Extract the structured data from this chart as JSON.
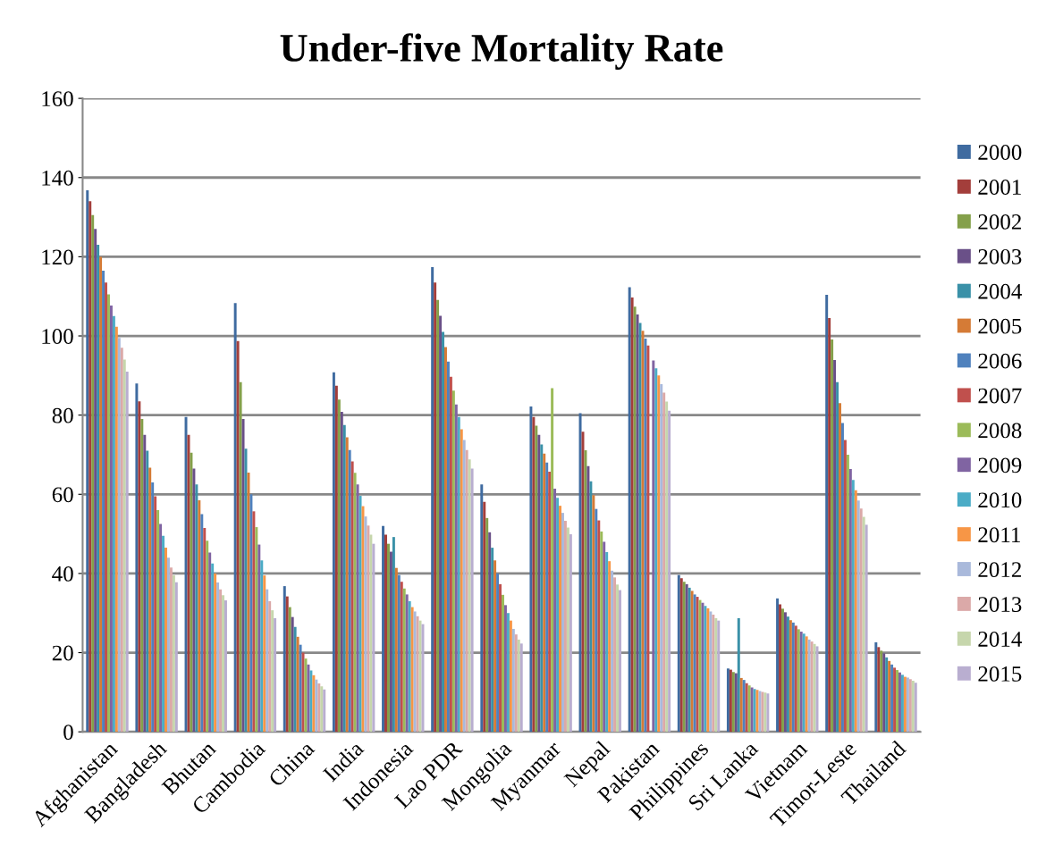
{
  "chart_data": {
    "type": "bar",
    "title": "Under-five Mortality Rate",
    "categories": [
      "Afghanistan",
      "Bangladesh",
      "Bhutan",
      "Cambodia",
      "China",
      "India",
      "Indonesia",
      "Lao PDR",
      "Mongolia",
      "Myanmar",
      "Nepal",
      "Pakistan",
      "Philippines",
      "Sri Lanka",
      "Vietnam",
      "Timor-Leste",
      "Thailand"
    ],
    "ylim": [
      0,
      160
    ],
    "yticks": [
      0,
      20,
      40,
      60,
      80,
      100,
      120,
      140,
      160
    ],
    "grid": "y",
    "legend": "right",
    "series": [
      {
        "name": "2000",
        "color": "#3f6ba0",
        "values": [
          136.8,
          88,
          79.5,
          108.3,
          36.8,
          90.8,
          52,
          117.4,
          62.5,
          82.2,
          80.5,
          112.3,
          39.6,
          16,
          33.7,
          110.4,
          22.6
        ]
      },
      {
        "name": "2001",
        "color": "#a33e3b",
        "values": [
          134,
          83.5,
          75,
          98.7,
          34.2,
          87.4,
          49.8,
          113.5,
          58.1,
          79.5,
          75.8,
          109.7,
          38.8,
          15.7,
          32.2,
          104.5,
          21.4
        ]
      },
      {
        "name": "2002",
        "color": "#84a04a",
        "values": [
          130.5,
          79,
          70.5,
          88.3,
          31.5,
          83.9,
          47.5,
          109.1,
          54,
          77.3,
          71.1,
          107.4,
          37.9,
          15.1,
          31.1,
          99.1,
          20.5
        ]
      },
      {
        "name": "2003",
        "color": "#6a5088",
        "values": [
          127,
          75,
          66.5,
          79,
          29,
          80.8,
          45.5,
          105.1,
          50.4,
          75,
          67.1,
          105.4,
          37.3,
          14.8,
          30.2,
          93.9,
          19.8
        ]
      },
      {
        "name": "2004",
        "color": "#3a91a8",
        "values": [
          123,
          71,
          62.5,
          71.5,
          26.5,
          77.5,
          49.2,
          101,
          46.5,
          72.6,
          63.3,
          103.3,
          36.4,
          28.7,
          29.1,
          88.3,
          18.8
        ]
      },
      {
        "name": "2005",
        "color": "#d57b36",
        "values": [
          120,
          66.7,
          58.5,
          65.5,
          24,
          74.4,
          41.4,
          97.2,
          43.3,
          70.3,
          59.8,
          101.3,
          35.6,
          13.6,
          28.2,
          83,
          17.9
        ]
      },
      {
        "name": "2006",
        "color": "#4f81bd",
        "values": [
          116.5,
          63,
          55,
          60,
          22,
          71.2,
          39.6,
          93.5,
          40,
          68,
          56.3,
          99.3,
          34.7,
          13.1,
          27.6,
          78,
          17
        ]
      },
      {
        "name": "2007",
        "color": "#c0504d",
        "values": [
          113.5,
          59.5,
          51.5,
          55.7,
          20,
          68.3,
          37.9,
          89.7,
          37.3,
          65.7,
          53.4,
          97.6,
          34.1,
          12.3,
          26.8,
          73.7,
          16.2
        ]
      },
      {
        "name": "2008",
        "color": "#9bbb59",
        "values": [
          110.5,
          56,
          48.3,
          51.7,
          18.5,
          65.4,
          36.2,
          86.2,
          34.6,
          86.8,
          50.6,
          null,
          33.3,
          11.7,
          25.9,
          70,
          15.6
        ]
      },
      {
        "name": "2009",
        "color": "#8064a2",
        "values": [
          107.7,
          52.5,
          45.3,
          47.3,
          17,
          62.5,
          34.7,
          82.7,
          32,
          61.4,
          48,
          93.8,
          32.6,
          11.2,
          25.3,
          66.4,
          15
        ]
      },
      {
        "name": "2010",
        "color": "#4bacc6",
        "values": [
          105,
          49.5,
          42.5,
          43.3,
          15.5,
          59.6,
          33,
          79.5,
          30,
          59.1,
          45.4,
          91.8,
          31.8,
          10.8,
          24.8,
          63.6,
          14.4
        ]
      },
      {
        "name": "2011",
        "color": "#f79646",
        "values": [
          102.3,
          46.5,
          40,
          39.5,
          14.3,
          57,
          31.5,
          76.4,
          28.1,
          57.1,
          43.1,
          90,
          31.2,
          10.6,
          24.1,
          61,
          13.9
        ]
      },
      {
        "name": "2012",
        "color": "#a9b9db",
        "values": [
          99.5,
          44,
          37.7,
          36,
          13.2,
          54.4,
          30.4,
          73.7,
          26,
          55.3,
          40.7,
          87.8,
          30.4,
          10.3,
          23.3,
          58.4,
          13.7
        ]
      },
      {
        "name": "2013",
        "color": "#dba9a8",
        "values": [
          97,
          41.5,
          36,
          33,
          12.2,
          52.1,
          29.2,
          71.2,
          24.6,
          53.3,
          39,
          85.7,
          29.6,
          10.1,
          22.8,
          56.4,
          13.3
        ]
      },
      {
        "name": "2014",
        "color": "#c6d6ac",
        "values": [
          94,
          39.5,
          34.5,
          30.7,
          11.5,
          49.8,
          28.1,
          68.8,
          23.3,
          51.6,
          37.2,
          83.4,
          28.7,
          9.9,
          22.2,
          54.3,
          12.9
        ]
      },
      {
        "name": "2015",
        "color": "#b9aed0",
        "values": [
          91,
          37.8,
          33.2,
          28.7,
          10.7,
          47.5,
          27.2,
          66.5,
          22.3,
          49.9,
          35.8,
          81.1,
          28.1,
          9.7,
          21.6,
          52.3,
          12.4
        ]
      }
    ]
  }
}
